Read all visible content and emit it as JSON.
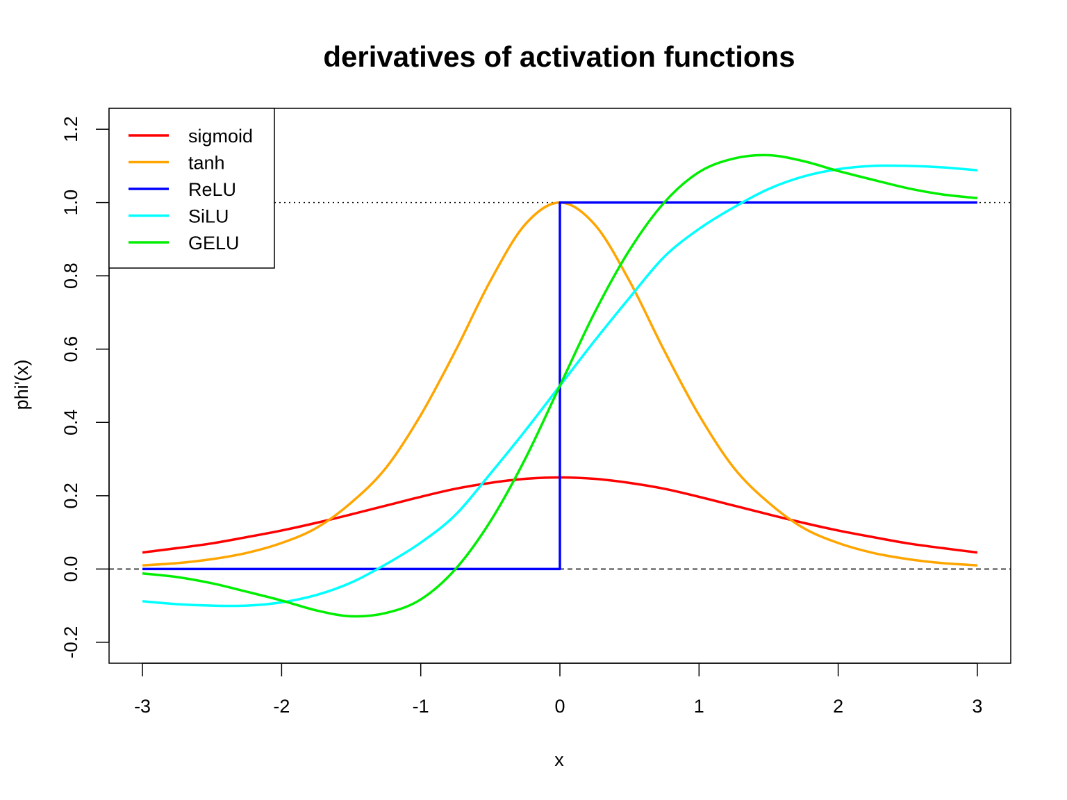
{
  "chart_data": {
    "type": "line",
    "title": "derivatives of activation functions",
    "xlabel": "x",
    "ylabel": "phi'(x)",
    "xlim": [
      -3.24,
      3.24
    ],
    "ylim": [
      -0.257,
      1.257
    ],
    "x_ticks": [
      {
        "value": -3,
        "label": "-3"
      },
      {
        "value": -2,
        "label": "-2"
      },
      {
        "value": -1,
        "label": "-1"
      },
      {
        "value": 0,
        "label": "0"
      },
      {
        "value": 1,
        "label": "1"
      },
      {
        "value": 2,
        "label": "2"
      },
      {
        "value": 3,
        "label": "3"
      }
    ],
    "y_ticks": [
      {
        "value": -0.2,
        "label": "-0.2"
      },
      {
        "value": 0.0,
        "label": "0.0"
      },
      {
        "value": 0.2,
        "label": "0.2"
      },
      {
        "value": 0.4,
        "label": "0.4"
      },
      {
        "value": 0.6,
        "label": "0.6"
      },
      {
        "value": 0.8,
        "label": "0.8"
      },
      {
        "value": 1.0,
        "label": "1.0"
      },
      {
        "value": 1.2,
        "label": "1.2"
      }
    ],
    "reference_lines": [
      {
        "y": 0,
        "style": "dashed",
        "color": "#000000"
      },
      {
        "y": 1,
        "style": "dotted",
        "color": "#000000"
      }
    ],
    "legend": "top-left",
    "grid": false,
    "series": [
      {
        "name": "sigmoid",
        "color": "#ff0000",
        "x": [
          -3.0,
          -2.75,
          -2.5,
          -2.25,
          -2.0,
          -1.75,
          -1.5,
          -1.25,
          -1.0,
          -0.75,
          -0.5,
          -0.25,
          0.0,
          0.25,
          0.5,
          0.75,
          1.0,
          1.25,
          1.5,
          1.75,
          2.0,
          2.25,
          2.5,
          2.75,
          3.0
        ],
        "y": [
          0.045,
          0.057,
          0.07,
          0.087,
          0.105,
          0.126,
          0.149,
          0.173,
          0.197,
          0.219,
          0.235,
          0.246,
          0.25,
          0.246,
          0.235,
          0.219,
          0.197,
          0.173,
          0.149,
          0.126,
          0.105,
          0.087,
          0.07,
          0.057,
          0.045
        ]
      },
      {
        "name": "tanh",
        "color": "#ffa500",
        "x": [
          -3.0,
          -2.75,
          -2.5,
          -2.25,
          -2.0,
          -1.75,
          -1.5,
          -1.25,
          -1.0,
          -0.75,
          -0.5,
          -0.25,
          0.0,
          0.25,
          0.5,
          0.75,
          1.0,
          1.25,
          1.5,
          1.75,
          2.0,
          2.25,
          2.5,
          2.75,
          3.0
        ],
        "y": [
          0.01,
          0.016,
          0.027,
          0.044,
          0.071,
          0.112,
          0.181,
          0.276,
          0.42,
          0.596,
          0.786,
          0.94,
          1.0,
          0.94,
          0.786,
          0.596,
          0.42,
          0.276,
          0.181,
          0.112,
          0.071,
          0.044,
          0.027,
          0.016,
          0.01
        ]
      },
      {
        "name": "ReLU",
        "color": "#0000ff",
        "x": [
          -3.0,
          0.0,
          0.0,
          3.0
        ],
        "y": [
          0.0,
          0.0,
          1.0,
          1.0
        ]
      },
      {
        "name": "SiLU",
        "color": "#00ffff",
        "x": [
          -3.0,
          -2.75,
          -2.5,
          -2.25,
          -2.0,
          -1.75,
          -1.5,
          -1.25,
          -1.0,
          -0.75,
          -0.5,
          -0.25,
          0.0,
          0.25,
          0.5,
          0.75,
          1.0,
          1.25,
          1.5,
          1.75,
          2.0,
          2.25,
          2.5,
          2.75,
          3.0
        ],
        "y": [
          -0.088,
          -0.096,
          -0.1,
          -0.1,
          -0.091,
          -0.071,
          -0.037,
          0.013,
          0.072,
          0.148,
          0.26,
          0.377,
          0.5,
          0.623,
          0.74,
          0.852,
          0.928,
          0.987,
          1.037,
          1.071,
          1.091,
          1.1,
          1.1,
          1.096,
          1.088
        ]
      },
      {
        "name": "GELU",
        "color": "#00ee00",
        "x": [
          -3.0,
          -2.75,
          -2.5,
          -2.25,
          -2.0,
          -1.75,
          -1.5,
          -1.25,
          -1.0,
          -0.75,
          -0.5,
          -0.25,
          0.0,
          0.25,
          0.5,
          0.75,
          1.0,
          1.25,
          1.5,
          1.75,
          2.0,
          2.25,
          2.5,
          2.75,
          3.0
        ],
        "y": [
          -0.012,
          -0.022,
          -0.039,
          -0.062,
          -0.086,
          -0.113,
          -0.129,
          -0.12,
          -0.083,
          0.0,
          0.13,
          0.3,
          0.5,
          0.7,
          0.87,
          1.0,
          1.083,
          1.12,
          1.129,
          1.113,
          1.086,
          1.062,
          1.039,
          1.022,
          1.012
        ]
      }
    ]
  }
}
